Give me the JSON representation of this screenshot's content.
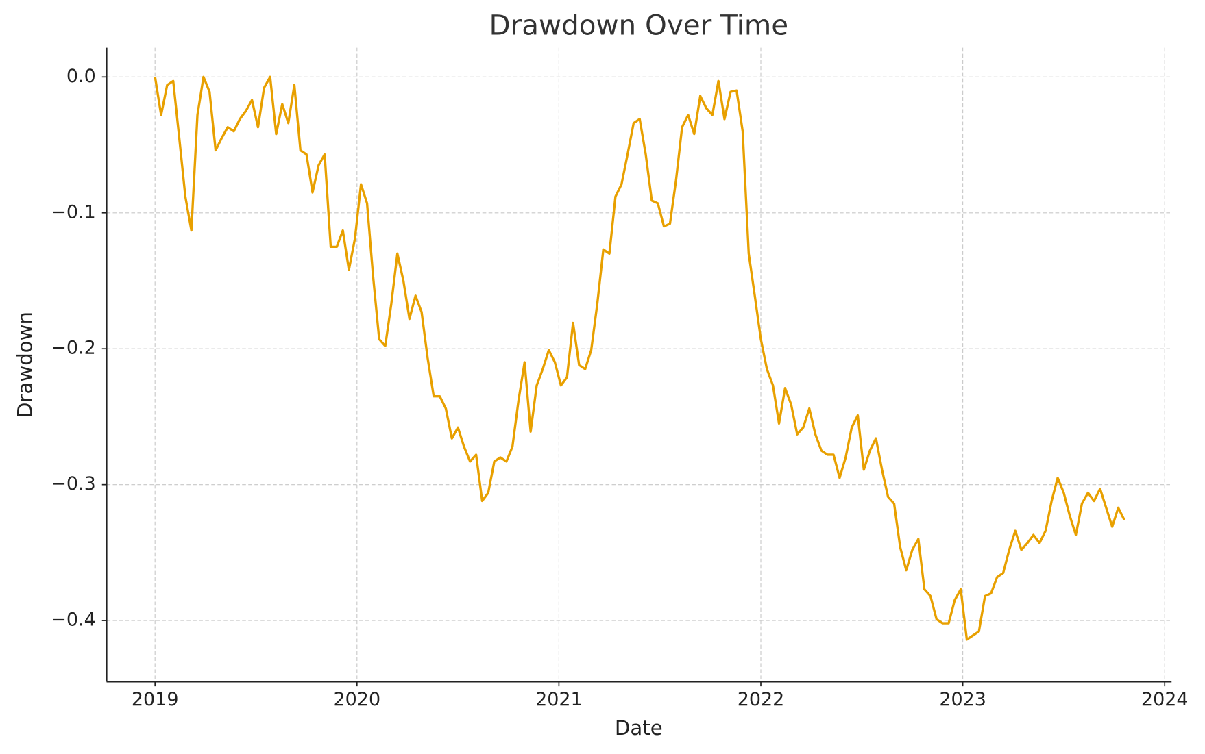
{
  "chart_data": {
    "type": "line",
    "title": "Drawdown Over Time",
    "x_label": "Date",
    "y_label": "Drawdown",
    "xlim": [
      2018.76,
      2024.034
    ],
    "ylim": [
      -0.445,
      0.0215
    ],
    "xticks": [
      2019,
      2020,
      2021,
      2022,
      2023,
      2024
    ],
    "yticks": [
      {
        "value": 0,
        "label": "0.0"
      },
      {
        "value": -0.1,
        "label": "−0.1"
      },
      {
        "value": -0.2,
        "label": "−0.2"
      },
      {
        "value": -0.3,
        "label": "−0.3"
      },
      {
        "value": -0.4,
        "label": "−0.4"
      }
    ],
    "grid": true,
    "series": [
      {
        "color": "#e8a000",
        "x": [
          2019,
          2019.03,
          2019.06,
          2019.09,
          2019.12,
          2019.15,
          2019.18,
          2019.21,
          2019.24,
          2019.27,
          2019.3,
          2019.33,
          2019.36,
          2019.39,
          2019.42,
          2019.45,
          2019.48,
          2019.51,
          2019.54,
          2019.57,
          2019.6,
          2019.63,
          2019.66,
          2019.69,
          2019.72,
          2019.75,
          2019.78,
          2019.81,
          2019.84,
          2019.87,
          2019.9,
          2019.93,
          2019.96,
          2019.99,
          2020.02,
          2020.05,
          2020.08,
          2020.11,
          2020.14,
          2020.17,
          2020.2,
          2020.23,
          2020.26,
          2020.29,
          2020.32,
          2020.35,
          2020.38,
          2020.41,
          2020.44,
          2020.47,
          2020.5,
          2020.53,
          2020.56,
          2020.59,
          2020.62,
          2020.65,
          2020.68,
          2020.71,
          2020.74,
          2020.77,
          2020.8,
          2020.83,
          2020.86,
          2020.89,
          2020.92,
          2020.95,
          2020.98,
          2021.01,
          2021.04,
          2021.07,
          2021.1,
          2021.13,
          2021.16,
          2021.19,
          2021.22,
          2021.25,
          2021.28,
          2021.31,
          2021.34,
          2021.37,
          2021.4,
          2021.43,
          2021.46,
          2021.49,
          2021.52,
          2021.55,
          2021.58,
          2021.61,
          2021.64,
          2021.67,
          2021.7,
          2021.73,
          2021.76,
          2021.79,
          2021.82,
          2021.85,
          2021.88,
          2021.91,
          2021.94,
          2021.97,
          2022,
          2022.03,
          2022.06,
          2022.09,
          2022.12,
          2022.15,
          2022.18,
          2022.21,
          2022.24,
          2022.27,
          2022.3,
          2022.33,
          2022.36,
          2022.39,
          2022.42,
          2022.45,
          2022.48,
          2022.51,
          2022.54,
          2022.57,
          2022.6,
          2022.63,
          2022.66,
          2022.69,
          2022.72,
          2022.75,
          2022.78,
          2022.81,
          2022.84,
          2022.87,
          2022.9,
          2022.93,
          2022.96,
          2022.99,
          2023.02,
          2023.05,
          2023.08,
          2023.11,
          2023.14,
          2023.17,
          2023.2,
          2023.23,
          2023.26,
          2023.29,
          2023.32,
          2023.35,
          2023.38,
          2023.41,
          2023.44,
          2023.47,
          2023.5,
          2023.53,
          2023.56,
          2023.59,
          2023.62,
          2023.65,
          2023.68,
          2023.71,
          2023.74,
          2023.77,
          2023.8
        ],
        "values": [
          0,
          -0.028,
          -0.006,
          -0.003,
          -0.045,
          -0.088,
          -0.113,
          -0.028,
          0,
          -0.011,
          -0.054,
          -0.045,
          -0.037,
          -0.04,
          -0.031,
          -0.025,
          -0.017,
          -0.037,
          -0.008,
          0,
          -0.042,
          -0.02,
          -0.034,
          -0.006,
          -0.054,
          -0.057,
          -0.085,
          -0.065,
          -0.057,
          -0.125,
          -0.125,
          -0.113,
          -0.142,
          -0.119,
          -0.079,
          -0.093,
          -0.147,
          -0.193,
          -0.198,
          -0.167,
          -0.13,
          -0.15,
          -0.178,
          -0.161,
          -0.173,
          -0.207,
          -0.235,
          -0.235,
          -0.244,
          -0.266,
          -0.258,
          -0.272,
          -0.283,
          -0.278,
          -0.312,
          -0.306,
          -0.283,
          -0.28,
          -0.283,
          -0.272,
          -0.238,
          -0.21,
          -0.261,
          -0.227,
          -0.215,
          -0.201,
          -0.21,
          -0.227,
          -0.221,
          -0.181,
          -0.212,
          -0.215,
          -0.201,
          -0.167,
          -0.127,
          -0.13,
          -0.088,
          -0.079,
          -0.057,
          -0.034,
          -0.031,
          -0.057,
          -0.091,
          -0.093,
          -0.11,
          -0.108,
          -0.076,
          -0.037,
          -0.028,
          -0.042,
          -0.014,
          -0.023,
          -0.028,
          -0.003,
          -0.031,
          -0.011,
          -0.01,
          -0.04,
          -0.13,
          -0.161,
          -0.193,
          -0.215,
          -0.227,
          -0.255,
          -0.229,
          -0.241,
          -0.263,
          -0.258,
          -0.244,
          -0.263,
          -0.275,
          -0.278,
          -0.278,
          -0.295,
          -0.28,
          -0.258,
          -0.249,
          -0.289,
          -0.275,
          -0.266,
          -0.289,
          -0.309,
          -0.314,
          -0.346,
          -0.363,
          -0.348,
          -0.34,
          -0.377,
          -0.382,
          -0.399,
          -0.402,
          -0.402,
          -0.385,
          -0.377,
          -0.414,
          -0.411,
          -0.408,
          -0.382,
          -0.38,
          -0.368,
          -0.365,
          -0.348,
          -0.334,
          -0.348,
          -0.343,
          -0.337,
          -0.343,
          -0.334,
          -0.312,
          -0.295,
          -0.306,
          -0.323,
          -0.337,
          -0.314,
          -0.306,
          -0.312,
          -0.303,
          -0.317,
          -0.331,
          -0.317,
          -0.326
        ]
      }
    ]
  }
}
